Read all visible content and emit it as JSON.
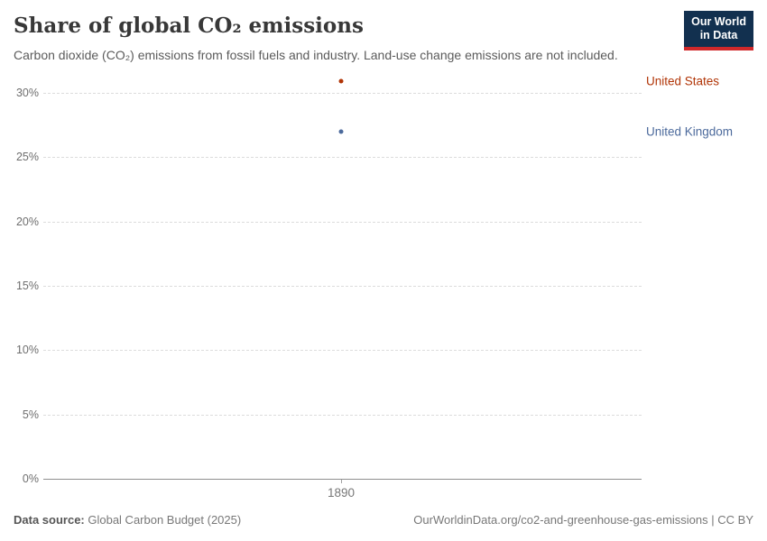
{
  "header": {
    "title": "Share of global CO₂ emissions",
    "subtitle": "Carbon dioxide (CO₂) emissions from fossil fuels and industry. Land-use change emissions are not included.",
    "logo_line1": "Our World",
    "logo_line2": "in Data"
  },
  "chart_data": {
    "type": "scatter",
    "title": "Share of global CO₂ emissions",
    "x": [
      1890
    ],
    "xticks": [
      "1890"
    ],
    "series": [
      {
        "name": "United States",
        "color": "#b13507",
        "values": [
          30.9
        ]
      },
      {
        "name": "United Kingdom",
        "color": "#4c6a9c",
        "values": [
          27.0
        ]
      }
    ],
    "xlabel": "",
    "ylabel": "",
    "ylim": [
      0,
      31.5
    ],
    "yticks": [
      0,
      5,
      10,
      15,
      20,
      25,
      30
    ],
    "ytick_suffix": "%",
    "grid": "horizontal-dashed",
    "legend_position": "right-of-points"
  },
  "footer": {
    "datasource_label": "Data source:",
    "datasource_value": " Global Carbon Budget (2025)",
    "link": "OurWorldinData.org/co2-and-greenhouse-gas-emissions",
    "separator": " | ",
    "license": "CC BY"
  },
  "colors": {
    "united_states": "#b13507",
    "united_kingdom": "#4c6a9c",
    "logo_bg": "#12304f",
    "logo_accent": "#d0282a",
    "gridline": "#dcdcdc",
    "axis": "#8f8f8f"
  }
}
